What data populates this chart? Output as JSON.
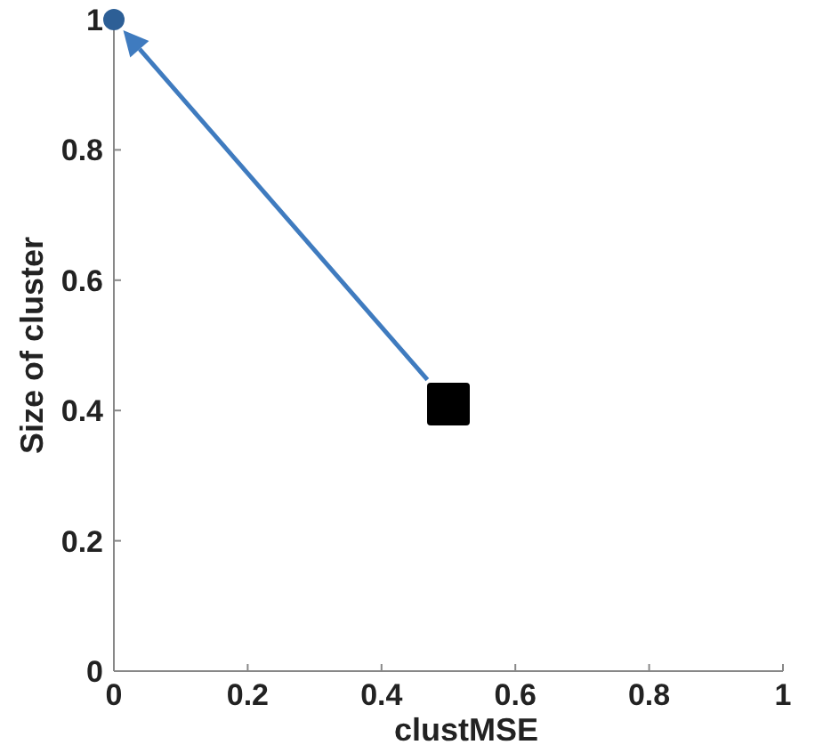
{
  "chart_data": {
    "type": "scatter",
    "xlabel": "clustMSE",
    "ylabel": "Size of cluster",
    "xlim": [
      0,
      1
    ],
    "ylim": [
      0,
      1
    ],
    "xticks": [
      0,
      0.2,
      0.4,
      0.6,
      0.8,
      1
    ],
    "yticks": [
      0,
      0.2,
      0.4,
      0.6,
      0.8,
      1
    ],
    "grid": false,
    "series": [
      {
        "x": [
          0
        ],
        "values": [
          1
        ],
        "color": "#2d5f96",
        "marker": "circle"
      },
      {
        "x": [
          0.5
        ],
        "values": [
          0.41
        ],
        "color": "#000000",
        "marker": "square"
      }
    ]
  }
}
